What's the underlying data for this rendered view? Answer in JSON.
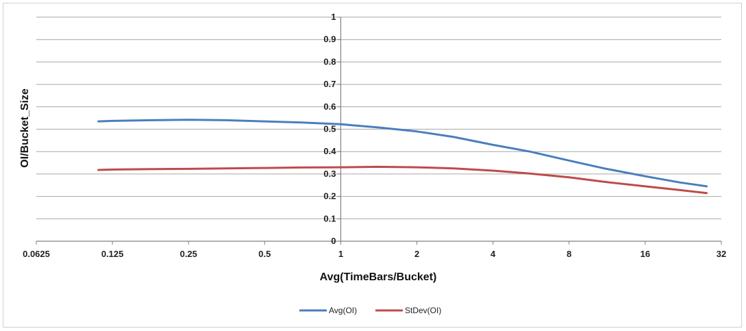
{
  "chart_data": {
    "type": "line",
    "xlabel": "Avg(TimeBars/Bucket)",
    "ylabel": "OI/Bucket_Size",
    "x_scale": "log2",
    "xlim": [
      0.0625,
      32
    ],
    "ylim": [
      0,
      1
    ],
    "x_ticks": [
      "0.0625",
      "0.125",
      "0.25",
      "0.5",
      "1",
      "2",
      "4",
      "8",
      "16",
      "32"
    ],
    "y_ticks": [
      "0",
      "0.1",
      "0.2",
      "0.3",
      "0.4",
      "0.5",
      "0.6",
      "0.7",
      "0.8",
      "0.9",
      "1"
    ],
    "grid": "horizontal",
    "legend_position": "bottom",
    "series": [
      {
        "name": "Avg(OI)",
        "color": "#4a7ebb",
        "x": [
          0.11,
          0.125,
          0.18,
          0.25,
          0.35,
          0.5,
          0.7,
          1,
          1.4,
          2,
          2.8,
          4,
          5.6,
          8,
          11,
          16,
          22,
          28
        ],
        "y": [
          0.535,
          0.537,
          0.54,
          0.542,
          0.54,
          0.535,
          0.53,
          0.522,
          0.508,
          0.49,
          0.465,
          0.43,
          0.4,
          0.36,
          0.325,
          0.29,
          0.262,
          0.245
        ]
      },
      {
        "name": "StDev(OI)",
        "color": "#be4b48",
        "x": [
          0.11,
          0.125,
          0.18,
          0.25,
          0.35,
          0.5,
          0.7,
          1,
          1.4,
          2,
          2.8,
          4,
          5.6,
          8,
          11,
          16,
          22,
          28
        ],
        "y": [
          0.318,
          0.32,
          0.322,
          0.323,
          0.325,
          0.327,
          0.329,
          0.33,
          0.332,
          0.33,
          0.325,
          0.315,
          0.302,
          0.285,
          0.265,
          0.245,
          0.228,
          0.215
        ]
      }
    ]
  }
}
